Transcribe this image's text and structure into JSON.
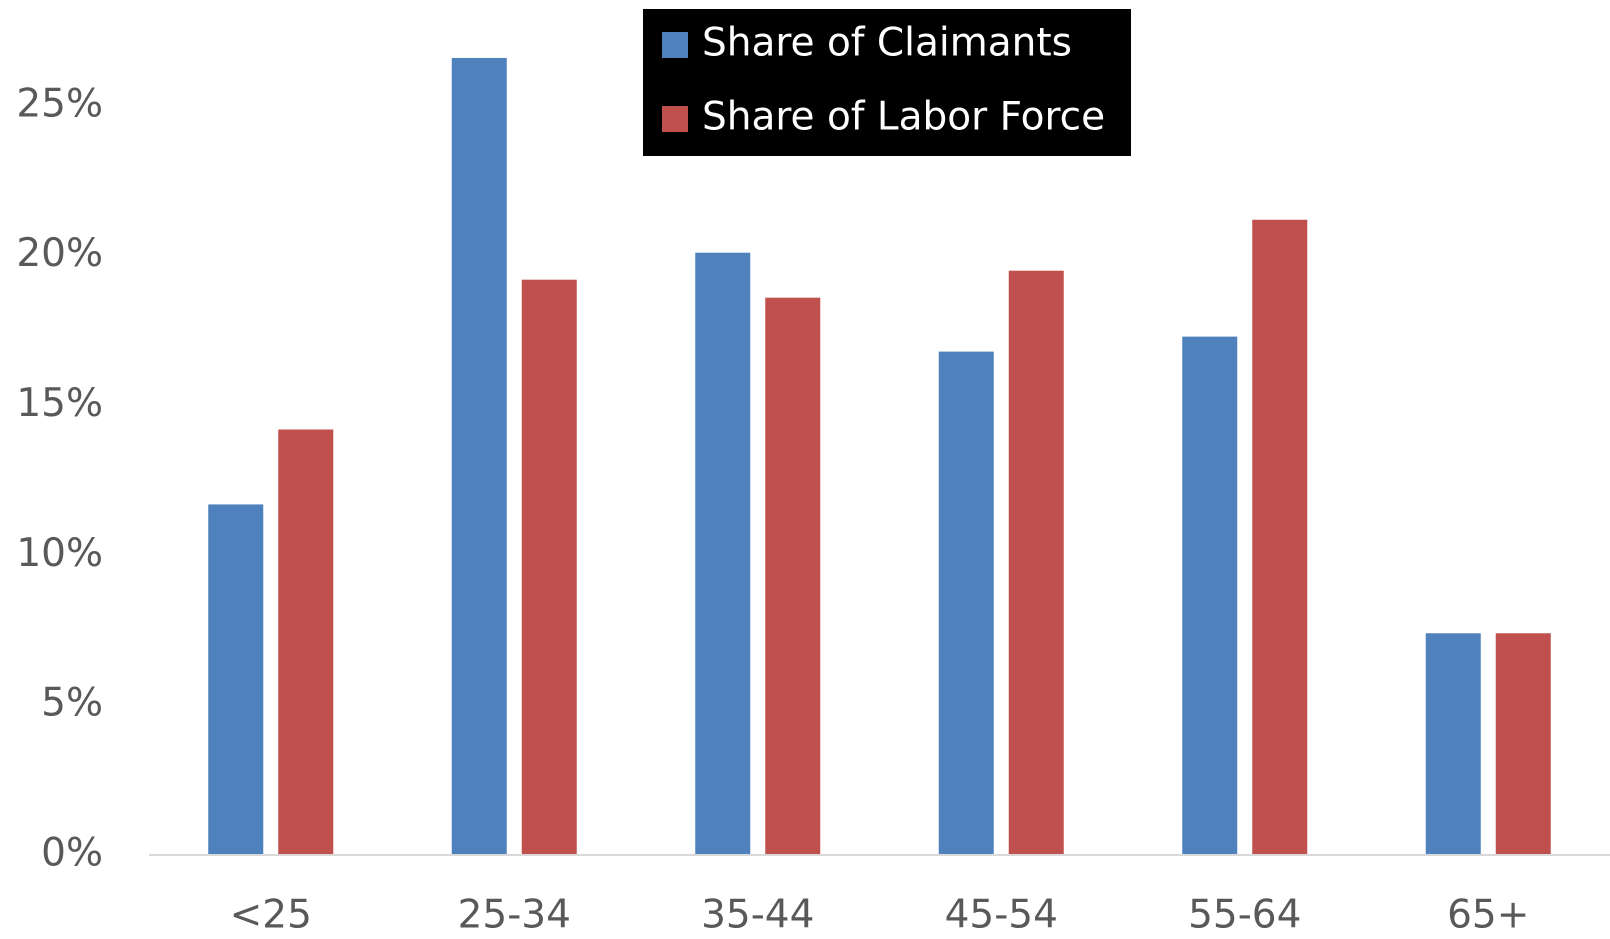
{
  "chart_data": {
    "type": "bar",
    "categories": [
      "<25",
      "25-34",
      "35-44",
      "45-54",
      "55-64",
      "65+"
    ],
    "series": [
      {
        "name": "Share of Claimants",
        "color": "#4f81bd",
        "values": [
          11.7,
          26.6,
          20.1,
          16.8,
          17.3,
          7.4
        ]
      },
      {
        "name": "Share of Labor Force",
        "color": "#c0504d",
        "values": [
          14.2,
          19.2,
          18.6,
          19.5,
          21.2,
          7.4
        ]
      }
    ],
    "ylim": [
      0,
      28
    ],
    "yticks": [
      {
        "value": 0,
        "label": "0%"
      },
      {
        "value": 5,
        "label": "5%"
      },
      {
        "value": 10,
        "label": "10%"
      },
      {
        "value": 15,
        "label": "15%"
      },
      {
        "value": 20,
        "label": "20%"
      },
      {
        "value": 25,
        "label": "25%"
      }
    ],
    "grid": false,
    "legend": "top"
  }
}
